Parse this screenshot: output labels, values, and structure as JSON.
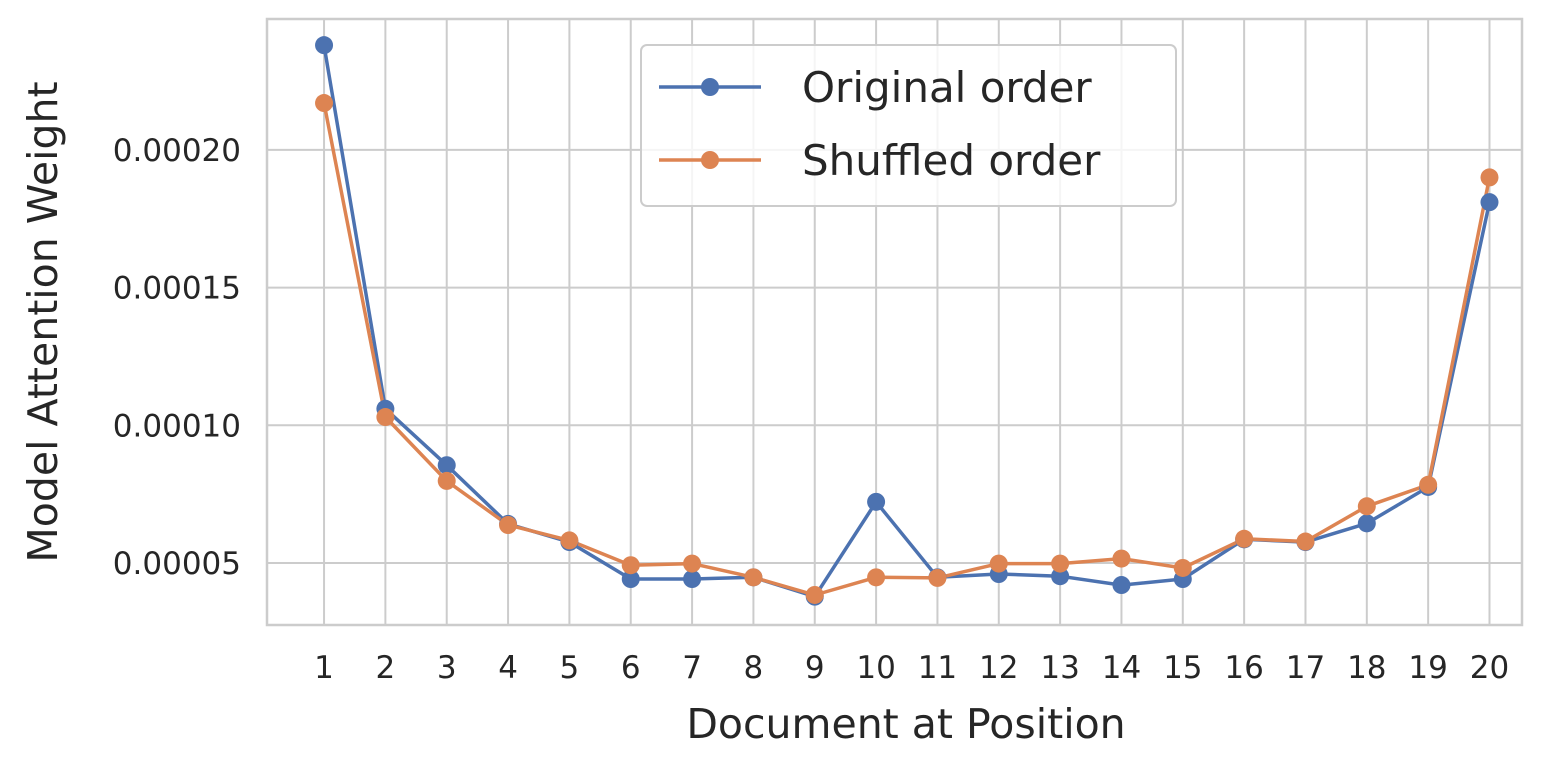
{
  "chart_data": {
    "type": "line",
    "xlabel": "Document at Position",
    "ylabel": "Model Attention Weight",
    "x": [
      1,
      2,
      3,
      4,
      5,
      6,
      7,
      8,
      9,
      10,
      11,
      12,
      13,
      14,
      15,
      16,
      17,
      18,
      19,
      20
    ],
    "xticks": [
      "1",
      "2",
      "3",
      "4",
      "5",
      "6",
      "7",
      "8",
      "9",
      "10",
      "11",
      "12",
      "13",
      "14",
      "15",
      "16",
      "17",
      "18",
      "19",
      "20"
    ],
    "xlim": [
      0.07,
      20.53
    ],
    "yticks": [
      5e-05,
      0.0001,
      0.00015,
      0.0002
    ],
    "ytick_labels": [
      "0.00005",
      "0.00010",
      "0.00015",
      "0.00020"
    ],
    "ylim": [
      2.75e-05,
      0.0002475
    ],
    "grid": true,
    "legend_position": "upper-center",
    "series": [
      {
        "name": "Original order",
        "color": "#4c72b0",
        "values": [
          0.000238,
          0.000106,
          8.55e-05,
          6.42e-05,
          5.76e-05,
          4.42e-05,
          4.42e-05,
          4.48e-05,
          3.78e-05,
          7.22e-05,
          4.48e-05,
          4.6e-05,
          4.52e-05,
          4.2e-05,
          4.42e-05,
          5.86e-05,
          5.76e-05,
          6.44e-05,
          7.76e-05,
          0.000181
        ]
      },
      {
        "name": "Shuffled order",
        "color": "#dd8452",
        "values": [
          0.000217,
          0.000103,
          7.98e-05,
          6.38e-05,
          5.82e-05,
          4.92e-05,
          4.98e-05,
          4.48e-05,
          3.84e-05,
          4.48e-05,
          4.46e-05,
          4.98e-05,
          4.98e-05,
          5.16e-05,
          4.82e-05,
          5.88e-05,
          5.78e-05,
          7.06e-05,
          7.84e-05,
          0.00019
        ]
      }
    ]
  }
}
